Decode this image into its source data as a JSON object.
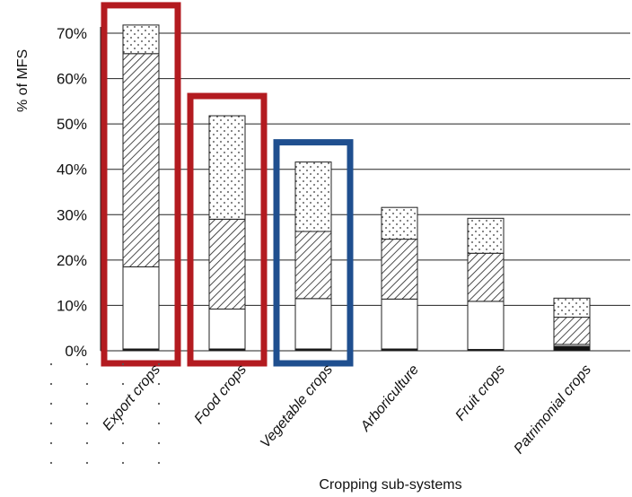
{
  "chart_data": {
    "type": "bar",
    "stacked": true,
    "categories": [
      "Export crops",
      "Food crops",
      "Vegetable crops",
      "Arboriculture",
      "Fruit crops",
      "Patrimonial crops"
    ],
    "series": [
      {
        "pattern": "solid-black",
        "values": [
          0.4,
          0.4,
          0.4,
          0.4,
          0.3,
          1.0
        ]
      },
      {
        "pattern": "white",
        "values": [
          18.1,
          8.8,
          11.1,
          11.0,
          10.6,
          0.4
        ]
      },
      {
        "pattern": "hatched",
        "values": [
          47.0,
          19.8,
          14.8,
          13.2,
          10.6,
          6.0
        ]
      },
      {
        "pattern": "dotted",
        "values": [
          6.3,
          22.8,
          15.3,
          7.0,
          7.7,
          4.2
        ]
      }
    ],
    "xlabel": "Cropping sub-systems",
    "ylabel": "% of MFS",
    "ylim": [
      0,
      70
    ],
    "yticks": [
      "0%",
      "10%",
      "20%",
      "30%",
      "40%",
      "50%",
      "60%",
      "70%"
    ],
    "grid": true,
    "highlights": [
      {
        "category": "Export crops",
        "color": "#b31b20"
      },
      {
        "category": "Food crops",
        "color": "#b31b20"
      },
      {
        "category": "Vegetable crops",
        "color": "#1f4f8f"
      }
    ]
  }
}
